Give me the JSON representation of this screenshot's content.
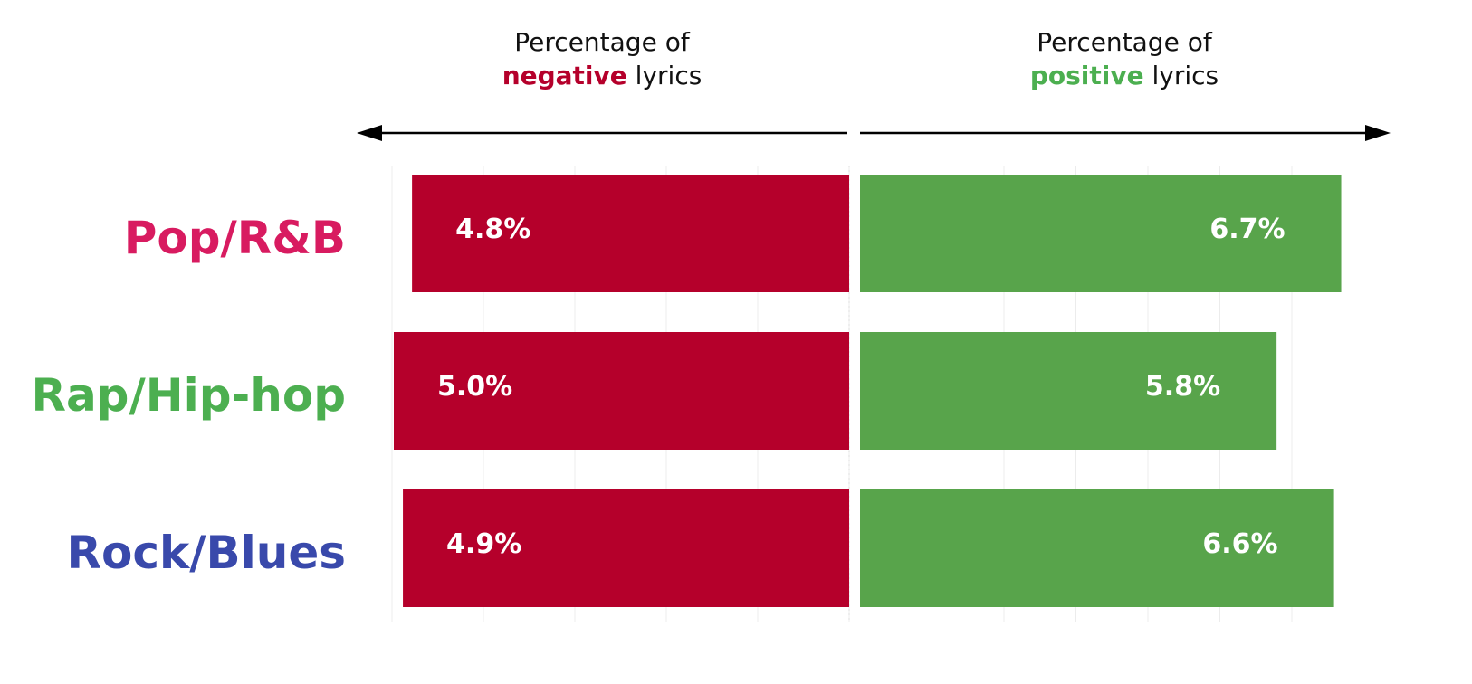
{
  "chart_data": {
    "type": "bar",
    "orientation": "diverging-horizontal",
    "categories": [
      "Pop/R&B",
      "Rap/Hip-hop",
      "Rock/Blues"
    ],
    "category_colors": [
      "#d81b60",
      "#4caf50",
      "#3949ab"
    ],
    "series": [
      {
        "name": "negative",
        "color": "#b5002b",
        "values": [
          4.8,
          5.0,
          4.9
        ],
        "labels": [
          "4.8%",
          "5.0%",
          "4.9%"
        ]
      },
      {
        "name": "positive",
        "color": "#58a44b",
        "values": [
          6.7,
          5.8,
          6.6
        ],
        "labels": [
          "6.7%",
          "5.8%",
          "6.6%"
        ]
      }
    ],
    "headers": {
      "negative": {
        "line1": "Percentage of",
        "emphasis": "negative",
        "suffix": " lyrics",
        "emphasis_color": "#b5002b"
      },
      "positive": {
        "line1": "Percentage of",
        "emphasis": "positive",
        "suffix": " lyrics",
        "emphasis_color": "#4caf50"
      }
    },
    "negative_xlim": [
      0,
      5.0
    ],
    "positive_xlim": [
      0,
      7.5
    ],
    "grid": true
  }
}
